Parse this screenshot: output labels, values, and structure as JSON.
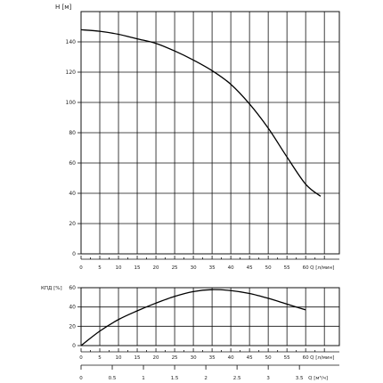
{
  "chart_data": [
    {
      "type": "line",
      "ylabel": "H [м]",
      "xlabel": "Q [л/мин]",
      "x_ticks": [
        "0",
        "5",
        "10",
        "15",
        "20",
        "25",
        "30",
        "35",
        "40",
        "45",
        "50",
        "55",
        "60"
      ],
      "y_ticks": [
        "0",
        "20",
        "40",
        "60",
        "80",
        "100",
        "120",
        "140"
      ],
      "xlim": [
        0,
        69
      ],
      "ylim": [
        0,
        160
      ],
      "grid": true,
      "series": [
        {
          "x": [
            0,
            5,
            10,
            15,
            20,
            25,
            30,
            35,
            40,
            45,
            50,
            55,
            60,
            64
          ],
          "y": [
            148,
            147,
            145,
            142,
            139,
            134,
            128,
            121,
            112,
            99,
            83,
            64,
            46,
            38
          ]
        }
      ]
    },
    {
      "type": "line",
      "ylabel": "КПД [%]",
      "xlabel": "Q [л/мин]",
      "x_ticks": [
        "0",
        "5",
        "10",
        "15",
        "20",
        "25",
        "30",
        "35",
        "40",
        "45",
        "50",
        "55",
        "60"
      ],
      "y_ticks": [
        "0",
        "20",
        "40",
        "60"
      ],
      "xlim": [
        0,
        69
      ],
      "ylim": [
        0,
        60
      ],
      "grid": true,
      "series": [
        {
          "x": [
            0,
            5,
            10,
            15,
            20,
            25,
            30,
            35,
            40,
            45,
            50,
            55,
            60
          ],
          "y": [
            0,
            15,
            27,
            36,
            44,
            51,
            56,
            58,
            57,
            54,
            49,
            43,
            37
          ]
        }
      ]
    },
    {
      "type": "axis",
      "xlabel": "Q [м³/ч]",
      "x_ticks": [
        "0",
        "0.5",
        "1",
        "1.5",
        "2",
        "2.5",
        "3",
        "3.5"
      ],
      "x_values": [
        0,
        0.5,
        1,
        1.5,
        2,
        2.5,
        3,
        3.5
      ],
      "xlim": [
        0,
        4.14
      ]
    }
  ]
}
